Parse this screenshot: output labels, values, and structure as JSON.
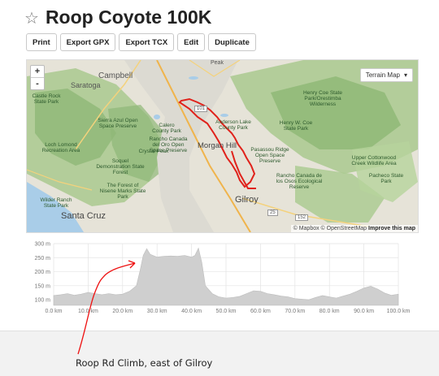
{
  "header": {
    "star_icon": "star-outline-icon",
    "title": "Roop Coyote 100K"
  },
  "toolbar": {
    "buttons": [
      "Print",
      "Export GPX",
      "Export TCX",
      "Edit",
      "Duplicate"
    ]
  },
  "map": {
    "map_type": "Terrain Map",
    "zoom_in": "+",
    "zoom_out": "-",
    "attribution": "© Mapbox © OpenStreetMap",
    "improve": "Improve this map",
    "route_color": "#e0221b",
    "labels": {
      "campbell": "Campbell",
      "saratoga": "Saratoga",
      "morgan": "Morgan Hill",
      "gilroy": "Gilroy",
      "santacruz": "Santa Cruz",
      "castlerock": "Castle Rock State Park",
      "sierraazul": "Sierra Azul Open Space Preserve",
      "calero": "Calero County Park",
      "rancho1": "Rancho Canada del Oro Open Space Preserve",
      "loch": "Loch Lomond Recreation Area",
      "sequel": "Soquel Demonstration State Forest",
      "crystal": "Crystal Peak",
      "forest": "The Forest of Nisene Marks State Park",
      "wilder": "Wilder Ranch State Park",
      "anderson": "Anderson Lake County Park",
      "henrycoe": "Henry Coe State Park/Orestimba Wilderness",
      "henrycoe2": "Henry W. Coe State Park",
      "pascoe": "Pasassou Ridge Open Space Preserve",
      "rancho2": "Rancho Canada de los Osos Ecological Reserve",
      "upper": "Upper Cottonwood Creek Wildlife Area",
      "pacheco": "Pacheco State Park",
      "peak": "Peak",
      "r101": "101",
      "r152": "152",
      "r25": "25"
    }
  },
  "chart_data": {
    "type": "area",
    "title": "",
    "xlabel": "",
    "ylabel": "",
    "x_ticks": [
      "0.0 km",
      "10.0 km",
      "20.0 km",
      "30.0 km",
      "40.0 km",
      "50.0 km",
      "60.0 km",
      "70.0 km",
      "80.0 km",
      "90.0 km",
      "100.0 km"
    ],
    "y_ticks": [
      "100 m",
      "150 m",
      "200 m",
      "250 m",
      "300 m"
    ],
    "xlim": [
      0,
      100
    ],
    "ylim": [
      80,
      300
    ],
    "grid": true,
    "fill_color": "#cfcfcf",
    "x": [
      0,
      2,
      4,
      6,
      8,
      10,
      12,
      14,
      16,
      18,
      20,
      22,
      24,
      25,
      26,
      27,
      28,
      30,
      32,
      34,
      36,
      38,
      40,
      41,
      42,
      43,
      44,
      46,
      48,
      50,
      52,
      54,
      56,
      58,
      60,
      62,
      64,
      66,
      68,
      70,
      72,
      74,
      76,
      78,
      80,
      82,
      84,
      86,
      88,
      90,
      92,
      94,
      96,
      98,
      100
    ],
    "values": [
      115,
      118,
      122,
      116,
      120,
      126,
      122,
      118,
      122,
      118,
      120,
      130,
      150,
      200,
      258,
      282,
      262,
      252,
      255,
      256,
      255,
      258,
      252,
      258,
      284,
      232,
      150,
      122,
      110,
      106,
      108,
      112,
      122,
      132,
      130,
      122,
      118,
      113,
      110,
      104,
      102,
      100,
      108,
      115,
      110,
      106,
      113,
      120,
      130,
      142,
      148,
      138,
      124,
      116,
      120
    ]
  },
  "annotation": {
    "caption": "Roop Rd Climb, east of Gilroy",
    "arrow_color": "#ee1111"
  }
}
